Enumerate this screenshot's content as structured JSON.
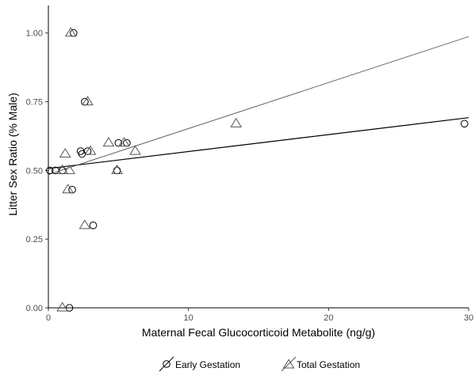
{
  "chart_data": {
    "type": "scatter",
    "title": "",
    "xlabel": "Maternal Fecal Glucocorticoid Metabolite (ng/g)",
    "ylabel": "Litter Sex Ratio (% Male)",
    "xlim": [
      0,
      30
    ],
    "ylim": [
      0,
      1.1
    ],
    "x_ticks": [
      0,
      10,
      20,
      30
    ],
    "x_tick_labels": [
      "0",
      "10",
      "20",
      "30"
    ],
    "y_ticks": [
      0,
      0.25,
      0.5,
      0.75,
      1.0
    ],
    "y_tick_labels": [
      "0.00",
      "0.25",
      "0.50",
      "0.75",
      "1.00"
    ],
    "grid": false,
    "legend_position": "bottom",
    "series": [
      {
        "name": "Early Gestation",
        "marker": "circle",
        "color": "#000000",
        "points": [
          {
            "x": 0.1,
            "y": 0.5
          },
          {
            "x": 0.5,
            "y": 0.5
          },
          {
            "x": 1.0,
            "y": 0.5
          },
          {
            "x": 1.5,
            "y": 0.0
          },
          {
            "x": 1.7,
            "y": 0.43
          },
          {
            "x": 1.8,
            "y": 1.0
          },
          {
            "x": 2.3,
            "y": 0.57
          },
          {
            "x": 2.4,
            "y": 0.56
          },
          {
            "x": 2.6,
            "y": 0.75
          },
          {
            "x": 2.8,
            "y": 0.57
          },
          {
            "x": 3.2,
            "y": 0.3
          },
          {
            "x": 4.9,
            "y": 0.5
          },
          {
            "x": 5.0,
            "y": 0.6
          },
          {
            "x": 5.6,
            "y": 0.6
          },
          {
            "x": 29.7,
            "y": 0.67
          }
        ],
        "trend": {
          "x": [
            0,
            30
          ],
          "y": [
            0.507,
            0.692
          ]
        }
      },
      {
        "name": "Total Gestation",
        "marker": "triangle",
        "color": "#555555",
        "points": [
          {
            "x": 1.0,
            "y": 0.0
          },
          {
            "x": 1.0,
            "y": 0.5
          },
          {
            "x": 1.2,
            "y": 0.56
          },
          {
            "x": 1.4,
            "y": 0.43
          },
          {
            "x": 1.5,
            "y": 0.5
          },
          {
            "x": 1.6,
            "y": 1.0
          },
          {
            "x": 2.6,
            "y": 0.3
          },
          {
            "x": 2.8,
            "y": 0.75
          },
          {
            "x": 3.0,
            "y": 0.57
          },
          {
            "x": 4.3,
            "y": 0.6
          },
          {
            "x": 4.9,
            "y": 0.5
          },
          {
            "x": 5.4,
            "y": 0.6
          },
          {
            "x": 6.2,
            "y": 0.57
          },
          {
            "x": 13.4,
            "y": 0.67
          }
        ],
        "trend": {
          "x": [
            0,
            30
          ],
          "y": [
            0.485,
            0.987
          ]
        }
      }
    ]
  }
}
